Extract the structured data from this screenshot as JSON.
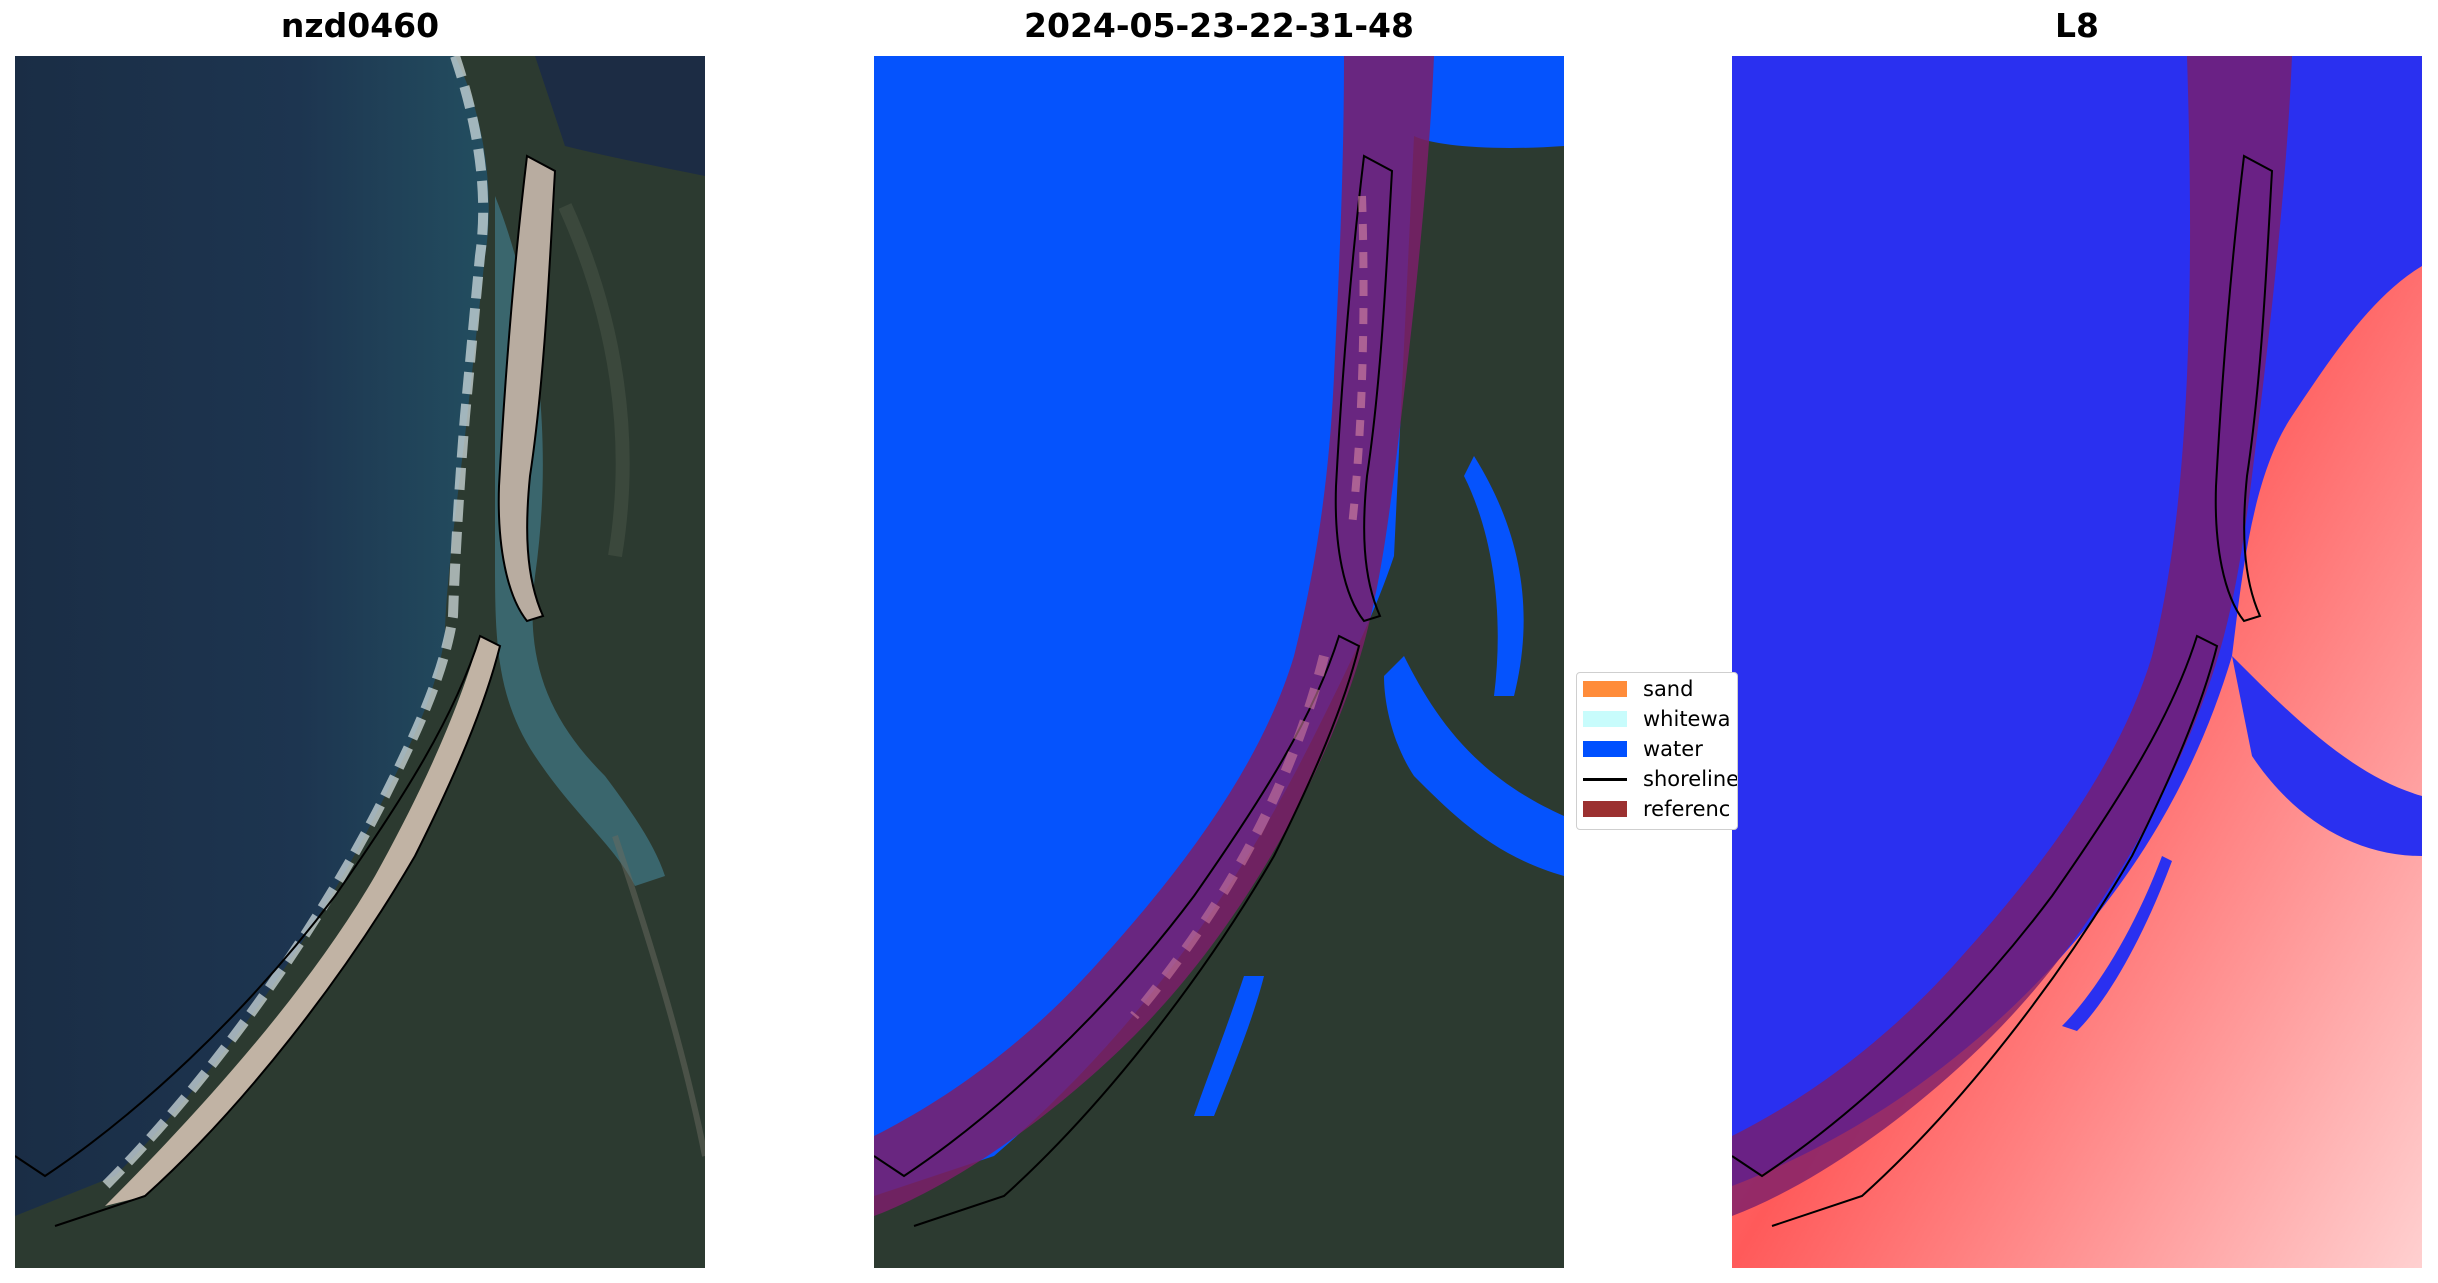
{
  "panels": [
    {
      "title": "nzd0460"
    },
    {
      "title": "2024-05-23-22-31-48"
    },
    {
      "title": "L8"
    }
  ],
  "legend": {
    "items": [
      {
        "label": "sand",
        "color": "#ff8c3a"
      },
      {
        "label": "whitewa",
        "color": "#c8fcfc"
      },
      {
        "label": "water",
        "color": "#0050ff"
      },
      {
        "label": "shoreline",
        "color": "#000000"
      },
      {
        "label": "referenc",
        "color": "#9b3030"
      }
    ]
  },
  "colors": {
    "ocean_rgb": "#1d3550",
    "land_rgb": "#2e3a2e",
    "sand_rgb": "#b8a99c",
    "water_class": "#0553fd",
    "reference_buffer": "#7b1e6a",
    "ndwi_water": "#2a30f0",
    "ndwi_land": "#ff5050"
  }
}
